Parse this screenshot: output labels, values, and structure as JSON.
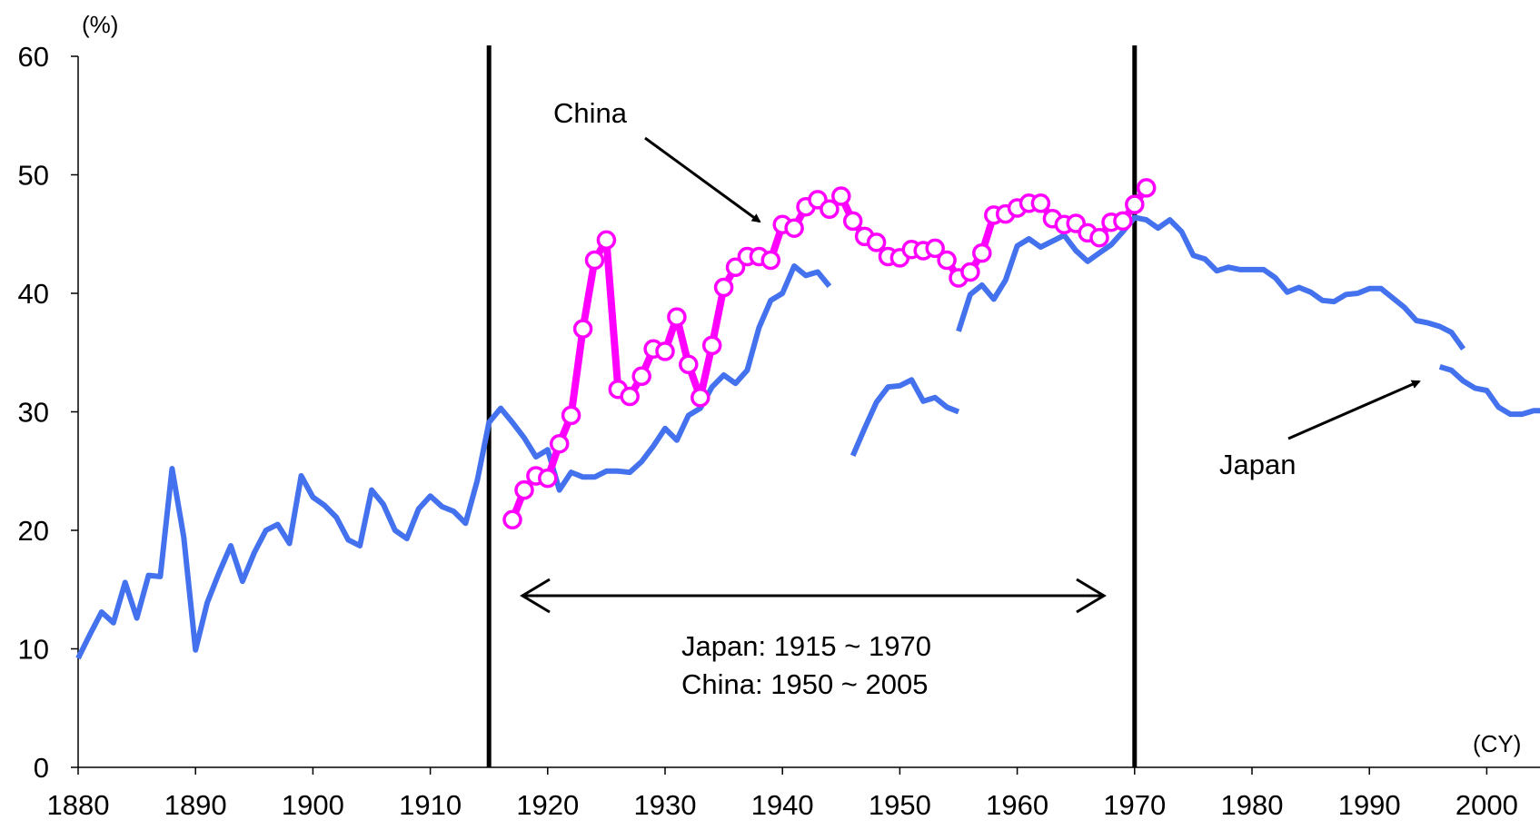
{
  "chart_data": {
    "type": "line",
    "y_unit": "(%)",
    "x_unit": "(CY)",
    "xlim": [
      1880,
      2005
    ],
    "ylim": [
      0,
      60
    ],
    "x_ticks": [
      1880,
      1890,
      1900,
      1910,
      1920,
      1930,
      1940,
      1950,
      1960,
      1970,
      1980,
      1990,
      2000
    ],
    "y_ticks": [
      0,
      10,
      20,
      30,
      40,
      50,
      60
    ],
    "grid": false,
    "colors": {
      "japan": "#4472ee",
      "china": "#ff00ff",
      "axis": "#000000"
    },
    "vertical_lines": [
      1915,
      1970
    ],
    "series": [
      {
        "name": "Japan",
        "color": "#4472ee",
        "segments": [
          [
            [
              1880,
              9.2
            ],
            [
              1881,
              11.2
            ],
            [
              1882,
              13.1
            ],
            [
              1883,
              12.2
            ],
            [
              1884,
              15.6
            ],
            [
              1885,
              12.6
            ],
            [
              1886,
              16.2
            ],
            [
              1887,
              16.1
            ],
            [
              1888,
              25.2
            ],
            [
              1889,
              19.4
            ],
            [
              1890,
              9.9
            ],
            [
              1891,
              13.9
            ],
            [
              1892,
              16.4
            ],
            [
              1893,
              18.7
            ],
            [
              1894,
              15.7
            ],
            [
              1895,
              18.1
            ],
            [
              1896,
              20.0
            ],
            [
              1897,
              20.5
            ],
            [
              1898,
              18.9
            ],
            [
              1899,
              24.6
            ],
            [
              1900,
              22.8
            ],
            [
              1901,
              22.1
            ],
            [
              1902,
              21.1
            ],
            [
              1903,
              19.2
            ],
            [
              1904,
              18.7
            ],
            [
              1905,
              23.4
            ],
            [
              1906,
              22.2
            ],
            [
              1907,
              20.0
            ],
            [
              1908,
              19.3
            ],
            [
              1909,
              21.8
            ],
            [
              1910,
              22.9
            ],
            [
              1911,
              22.0
            ],
            [
              1912,
              21.6
            ],
            [
              1913,
              20.6
            ],
            [
              1914,
              24.2
            ],
            [
              1915,
              29.1
            ],
            [
              1916,
              30.3
            ],
            [
              1917,
              29.1
            ],
            [
              1918,
              27.8
            ],
            [
              1919,
              26.2
            ],
            [
              1920,
              26.8
            ],
            [
              1921,
              23.4
            ],
            [
              1922,
              24.9
            ],
            [
              1923,
              24.5
            ],
            [
              1924,
              24.5
            ],
            [
              1925,
              25.0
            ],
            [
              1926,
              25.0
            ],
            [
              1927,
              24.9
            ],
            [
              1928,
              25.8
            ],
            [
              1929,
              27.1
            ],
            [
              1930,
              28.6
            ],
            [
              1931,
              27.6
            ],
            [
              1932,
              29.7
            ],
            [
              1933,
              30.3
            ],
            [
              1934,
              32.1
            ],
            [
              1935,
              33.1
            ],
            [
              1936,
              32.4
            ],
            [
              1937,
              33.5
            ],
            [
              1938,
              37.1
            ],
            [
              1939,
              39.4
            ],
            [
              1940,
              40.0
            ],
            [
              1941,
              42.3
            ],
            [
              1942,
              41.5
            ],
            [
              1943,
              41.8
            ],
            [
              1944,
              40.6
            ]
          ],
          [
            [
              1946,
              26.3
            ],
            [
              1947,
              28.6
            ],
            [
              1948,
              30.8
            ],
            [
              1949,
              32.1
            ],
            [
              1950,
              32.2
            ],
            [
              1951,
              32.7
            ],
            [
              1952,
              30.9
            ],
            [
              1953,
              31.2
            ],
            [
              1954,
              30.4
            ],
            [
              1955,
              30.0
            ]
          ],
          [
            [
              1955,
              36.8
            ],
            [
              1956,
              39.9
            ],
            [
              1957,
              40.7
            ],
            [
              1958,
              39.5
            ],
            [
              1959,
              41.1
            ],
            [
              1960,
              44.0
            ],
            [
              1961,
              44.6
            ],
            [
              1962,
              43.9
            ],
            [
              1963,
              44.4
            ],
            [
              1964,
              44.9
            ],
            [
              1965,
              43.6
            ],
            [
              1966,
              42.7
            ],
            [
              1967,
              43.4
            ],
            [
              1968,
              44.1
            ],
            [
              1969,
              45.2
            ],
            [
              1970,
              46.4
            ],
            [
              1971,
              46.2
            ],
            [
              1972,
              45.5
            ],
            [
              1973,
              46.2
            ],
            [
              1974,
              45.2
            ],
            [
              1975,
              43.2
            ],
            [
              1976,
              42.9
            ],
            [
              1977,
              41.9
            ],
            [
              1978,
              42.2
            ],
            [
              1979,
              42.0
            ],
            [
              1980,
              42.0
            ],
            [
              1981,
              42.0
            ],
            [
              1982,
              41.3
            ],
            [
              1983,
              40.1
            ],
            [
              1984,
              40.5
            ],
            [
              1985,
              40.1
            ],
            [
              1986,
              39.4
            ],
            [
              1987,
              39.3
            ],
            [
              1988,
              39.9
            ],
            [
              1989,
              40.0
            ],
            [
              1990,
              40.4
            ],
            [
              1991,
              40.4
            ],
            [
              1992,
              39.6
            ],
            [
              1993,
              38.8
            ],
            [
              1994,
              37.7
            ],
            [
              1995,
              37.5
            ],
            [
              1996,
              37.2
            ],
            [
              1997,
              36.7
            ],
            [
              1998,
              35.3
            ]
          ],
          [
            [
              1996,
              33.8
            ],
            [
              1997,
              33.5
            ],
            [
              1998,
              32.6
            ],
            [
              1999,
              32.0
            ],
            [
              2000,
              31.8
            ],
            [
              2001,
              30.4
            ],
            [
              2002,
              29.8
            ],
            [
              2003,
              29.8
            ],
            [
              2004,
              30.1
            ],
            [
              2005,
              30.1
            ]
          ]
        ]
      },
      {
        "name": "China",
        "color": "#ff00ff",
        "marker": "circle",
        "segments": [
          [
            [
              1917,
              20.9
            ],
            [
              1918,
              23.4
            ],
            [
              1919,
              24.6
            ],
            [
              1920,
              24.4
            ],
            [
              1921,
              27.3
            ],
            [
              1922,
              29.7
            ],
            [
              1923,
              37.0
            ],
            [
              1924,
              42.8
            ],
            [
              1925,
              44.5
            ],
            [
              1926,
              31.9
            ],
            [
              1927,
              31.3
            ],
            [
              1928,
              33.0
            ],
            [
              1929,
              35.3
            ],
            [
              1930,
              35.1
            ],
            [
              1931,
              38.0
            ],
            [
              1932,
              34.0
            ],
            [
              1933,
              31.2
            ],
            [
              1934,
              35.6
            ],
            [
              1935,
              40.5
            ],
            [
              1936,
              42.2
            ],
            [
              1937,
              43.1
            ],
            [
              1938,
              43.1
            ],
            [
              1939,
              42.8
            ],
            [
              1940,
              45.8
            ],
            [
              1941,
              45.5
            ],
            [
              1942,
              47.3
            ],
            [
              1943,
              47.9
            ],
            [
              1944,
              47.1
            ],
            [
              1945,
              48.2
            ],
            [
              1946,
              46.1
            ],
            [
              1947,
              44.8
            ],
            [
              1948,
              44.3
            ],
            [
              1949,
              43.1
            ],
            [
              1950,
              43.0
            ],
            [
              1951,
              43.7
            ],
            [
              1952,
              43.6
            ],
            [
              1953,
              43.8
            ],
            [
              1954,
              42.8
            ],
            [
              1955,
              41.3
            ],
            [
              1956,
              41.8
            ],
            [
              1957,
              43.4
            ],
            [
              1958,
              46.6
            ],
            [
              1959,
              46.7
            ],
            [
              1960,
              47.2
            ],
            [
              1961,
              47.6
            ],
            [
              1962,
              47.6
            ],
            [
              1963,
              46.3
            ],
            [
              1964,
              45.8
            ],
            [
              1965,
              45.9
            ],
            [
              1966,
              45.1
            ],
            [
              1967,
              44.7
            ],
            [
              1968,
              46.0
            ],
            [
              1969,
              46.1
            ],
            [
              1970,
              47.5
            ],
            [
              1971,
              48.9
            ]
          ]
        ]
      }
    ],
    "annotations": {
      "china_label": "China",
      "japan_label": "Japan",
      "range_line1": "Japan: 1915 ~ 1970",
      "range_line2": "China: 1950 ~ 2005"
    }
  }
}
